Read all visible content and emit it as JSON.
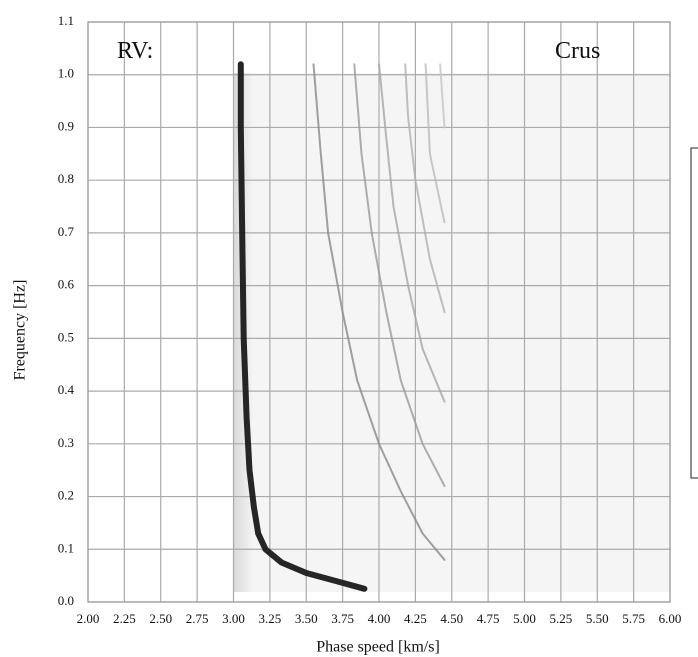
{
  "chart_data": {
    "type": "line",
    "xlabel": "Phase speed [km/s]",
    "ylabel": "Frequency [Hz]",
    "annotations": [
      "RV:",
      "Crus"
    ],
    "xlim": [
      2,
      6
    ],
    "ylim": [
      0,
      1.1
    ],
    "xticks": [
      {
        "value": 2,
        "label": "2.00"
      },
      2.25,
      {
        "value": 2.5,
        "label": "2.50"
      },
      2.75,
      {
        "value": 3,
        "label": "3.00"
      },
      3.25,
      {
        "value": 3.5,
        "label": "3.50"
      },
      3.75,
      {
        "value": 4,
        "label": "4.00"
      },
      4.25,
      {
        "value": 4.5,
        "label": "4.50"
      },
      4.75,
      {
        "value": 5,
        "label": "5.00"
      },
      5.25,
      {
        "value": 5.5,
        "label": "5.50"
      },
      5.75,
      {
        "value": 6,
        "label": "6.00"
      }
    ],
    "yticks": [
      {
        "value": 0,
        "label": "0.0"
      },
      0.1,
      0.2,
      0.3,
      0.4,
      0.5,
      0.6,
      0.7,
      0.8,
      0.9,
      {
        "value": 1,
        "label": "1.0"
      },
      1.1
    ],
    "grid": true,
    "series": [
      {
        "color": "#1a1a1a",
        "x": [
          3.05,
          3.05,
          3.06,
          3.07,
          3.09,
          3.11,
          3.14,
          3.17,
          3.22,
          3.33,
          3.5,
          3.7,
          3.9
        ],
        "values": [
          1.02,
          0.9,
          0.7,
          0.5,
          0.35,
          0.25,
          0.18,
          0.13,
          0.1,
          0.075,
          0.055,
          0.04,
          0.025
        ]
      },
      {
        "color": "#8a8a8a",
        "x": [
          4.45,
          4.3,
          4.15,
          4.0,
          3.85,
          3.75,
          3.65,
          3.6,
          3.55
        ],
        "values": [
          0.08,
          0.13,
          0.21,
          0.3,
          0.42,
          0.55,
          0.7,
          0.85,
          1.02
        ]
      },
      {
        "color": "#9a9a9a",
        "x": [
          4.45,
          4.3,
          4.15,
          4.05,
          3.95,
          3.88,
          3.83
        ],
        "values": [
          0.22,
          0.3,
          0.42,
          0.55,
          0.7,
          0.85,
          1.02
        ]
      },
      {
        "color": "#a5a5a5",
        "x": [
          4.45,
          4.3,
          4.2,
          4.1,
          4.05,
          4.0
        ],
        "values": [
          0.38,
          0.48,
          0.6,
          0.75,
          0.88,
          1.02
        ]
      },
      {
        "color": "#b0b0b0",
        "x": [
          4.45,
          4.35,
          4.25,
          4.2,
          4.18
        ],
        "values": [
          0.55,
          0.65,
          0.8,
          0.92,
          1.02
        ]
      },
      {
        "color": "#bbbbbb",
        "x": [
          4.45,
          4.35,
          4.32
        ],
        "values": [
          0.72,
          0.85,
          1.02
        ]
      },
      {
        "color": "#c5c5c5",
        "x": [
          4.45,
          4.42
        ],
        "values": [
          0.9,
          1.02
        ]
      }
    ]
  }
}
